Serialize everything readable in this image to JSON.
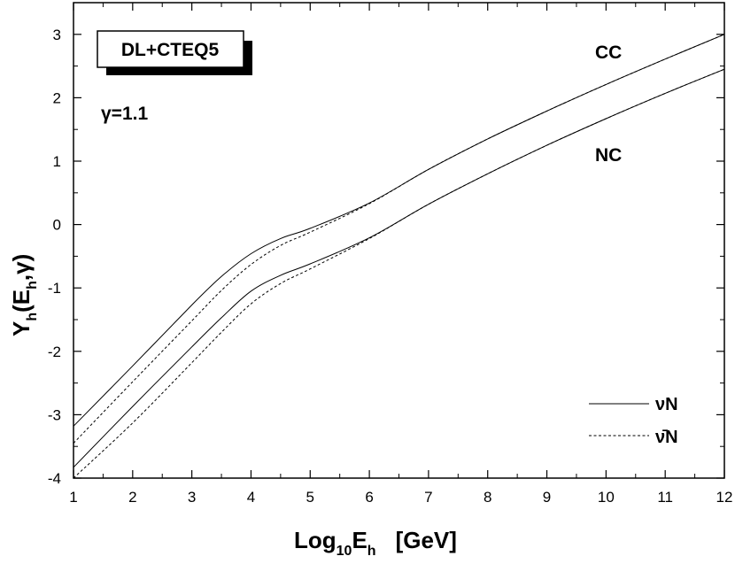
{
  "chart_data": {
    "type": "line",
    "xlabel": {
      "main": "Log",
      "sub1": "10",
      "mid": "E",
      "sub2": "h",
      "unit": "[GeV]"
    },
    "ylabel": {
      "main": "Y",
      "sub1": "h",
      "mid": "(E",
      "sub2": "h",
      "tail": ",γ)"
    },
    "xlim": [
      1,
      12
    ],
    "ylim": [
      -4,
      3.5
    ],
    "xticks": [
      1,
      2,
      3,
      4,
      5,
      6,
      7,
      8,
      9,
      10,
      11,
      12
    ],
    "yticks": [
      -4,
      -3,
      -2,
      -1,
      0,
      1,
      2,
      3
    ],
    "box_label": "DL+CTEQ5",
    "gamma_label": "γ=1.1",
    "curve_labels": {
      "cc": "CC",
      "nc": "NC"
    },
    "legend": {
      "placement": "bottom-right",
      "entries": [
        {
          "label": "νN",
          "style": "solid"
        },
        {
          "label": "ν̄N",
          "style": "dashed"
        }
      ]
    },
    "series": [
      {
        "group": "CC",
        "style": "solid",
        "x": [
          1,
          2,
          3,
          3.5,
          4,
          4.5,
          5,
          6,
          7,
          8,
          9,
          10,
          11,
          12
        ],
        "y": [
          -3.18,
          -2.23,
          -1.27,
          -0.82,
          -0.46,
          -0.22,
          -0.06,
          0.34,
          0.87,
          1.35,
          1.79,
          2.21,
          2.61,
          3.0
        ]
      },
      {
        "group": "CC",
        "style": "dashed",
        "x": [
          1,
          2,
          3,
          3.5,
          4,
          4.5,
          5,
          6,
          7,
          8,
          9,
          10,
          11,
          12
        ],
        "y": [
          -3.45,
          -2.48,
          -1.52,
          -1.04,
          -0.63,
          -0.33,
          -0.12,
          0.33,
          0.87,
          1.35,
          1.79,
          2.21,
          2.61,
          3.0
        ]
      },
      {
        "group": "NC",
        "style": "solid",
        "x": [
          1,
          2,
          3,
          3.5,
          4,
          4.5,
          5,
          6,
          7,
          8,
          9,
          10,
          11,
          12
        ],
        "y": [
          -3.83,
          -2.87,
          -1.93,
          -1.47,
          -1.05,
          -0.8,
          -0.62,
          -0.21,
          0.32,
          0.8,
          1.25,
          1.67,
          2.07,
          2.45
        ]
      },
      {
        "group": "NC",
        "style": "dashed",
        "x": [
          1,
          2,
          3,
          3.5,
          4,
          4.5,
          5,
          6,
          7,
          8,
          9,
          10,
          11,
          12
        ],
        "y": [
          -4.0,
          -3.13,
          -2.18,
          -1.7,
          -1.25,
          -0.93,
          -0.7,
          -0.22,
          0.32,
          0.8,
          1.25,
          1.67,
          2.07,
          2.45
        ]
      }
    ]
  }
}
